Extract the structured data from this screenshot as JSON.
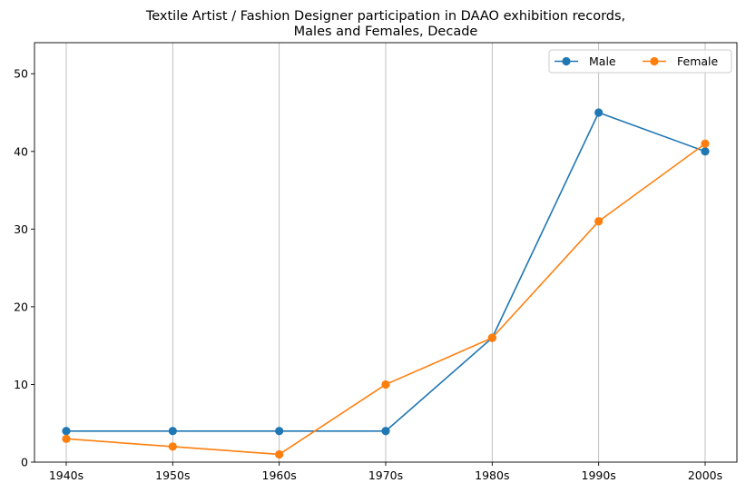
{
  "chart_data": {
    "type": "line",
    "title": "Textile Artist / Fashion Designer participation in DAAO exhibition records,",
    "subtitle": "Males and Females, Decade",
    "xlabel": "",
    "ylabel": "",
    "categories": [
      "1940s",
      "1950s",
      "1960s",
      "1970s",
      "1980s",
      "1990s",
      "2000s"
    ],
    "series": [
      {
        "name": "Male",
        "color": "#1f77b4",
        "values": [
          4,
          4,
          4,
          4,
          16,
          45,
          40
        ]
      },
      {
        "name": "Female",
        "color": "#ff7f0e",
        "values": [
          3,
          2,
          1,
          10,
          16,
          31,
          41
        ]
      }
    ],
    "ylim": [
      0,
      54
    ],
    "yticks": [
      0,
      10,
      20,
      30,
      40,
      50
    ],
    "grid": "x-only",
    "legend": "top-right"
  }
}
